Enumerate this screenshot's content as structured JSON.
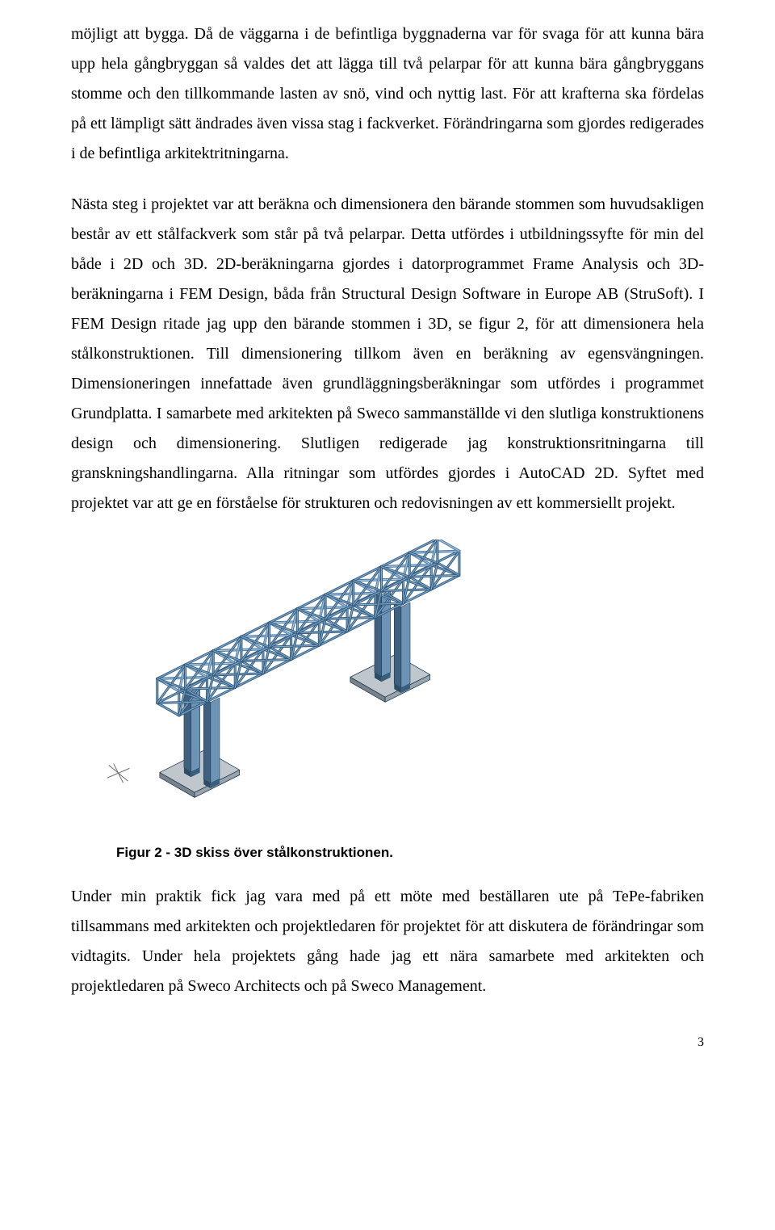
{
  "paragraphs": {
    "p1": "möjligt att bygga. Då de väggarna i de befintliga byggnaderna var för svaga för att kunna bära upp hela gångbryggan så valdes det att lägga till två pelarpar för att kunna bära gångbryggans stomme och den tillkommande lasten av snö, vind och nyttig last. För att krafterna ska fördelas på ett lämpligt sätt ändrades även vissa stag i fackverket. Förändringarna som gjordes redigerades i de befintliga arkitektritningarna.",
    "p2": "Nästa steg i projektet var att beräkna och dimensionera den bärande stommen som huvudsakligen består av ett stålfackverk som står på två pelarpar. Detta utfördes i utbildningssyfte för min del både i 2D och 3D. 2D-beräkningarna gjordes i datorprogrammet Frame Analysis och 3D-beräkningarna i FEM Design, båda från Structural Design Software in Europe AB (StruSoft). I FEM Design ritade jag upp den bärande stommen i 3D, se figur 2, för att dimensionera hela stålkonstruktionen. Till dimensionering tillkom även en beräkning av egensvängningen. Dimensioneringen innefattade även grundläggningsberäkningar som utfördes i programmet Grundplatta. I samarbete med arkitekten på Sweco sammanställde vi den slutliga konstruktionens design och dimensionering. Slutligen redigerade jag konstruktionsritningarna till granskningshandlingarna. Alla ritningar som utfördes gjordes i AutoCAD 2D. Syftet med projektet var att ge en förståelse för strukturen och redovisningen av ett kommersiellt projekt.",
    "p3": "Under min praktik fick jag vara med på ett möte med beställaren ute på TePe-fabriken tillsammans med arkitekten och projektledaren för projektet för att diskutera de förändringar som vidtagits. Under hela projektets gång hade jag ett nära samarbete med arkitekten och projektledaren på Sweco Architects och på Sweco Management."
  },
  "figure": {
    "caption": "Figur 2 - 3D skiss över stålkonstruktionen.",
    "colors": {
      "truss_face_light": "#7fa9c9",
      "truss_face_mid": "#4e7da6",
      "truss_face_dark": "#335a7d",
      "truss_outline": "#1e3a52",
      "slab_top": "#bfc7cc",
      "slab_side_light": "#9aa3aa",
      "slab_side_dark": "#7a838b",
      "pillar_light": "#6d94b6",
      "pillar_dark": "#3f607e",
      "background": "#ffffff",
      "axis_mark": "#6a6a6a"
    }
  },
  "page_number": "3"
}
